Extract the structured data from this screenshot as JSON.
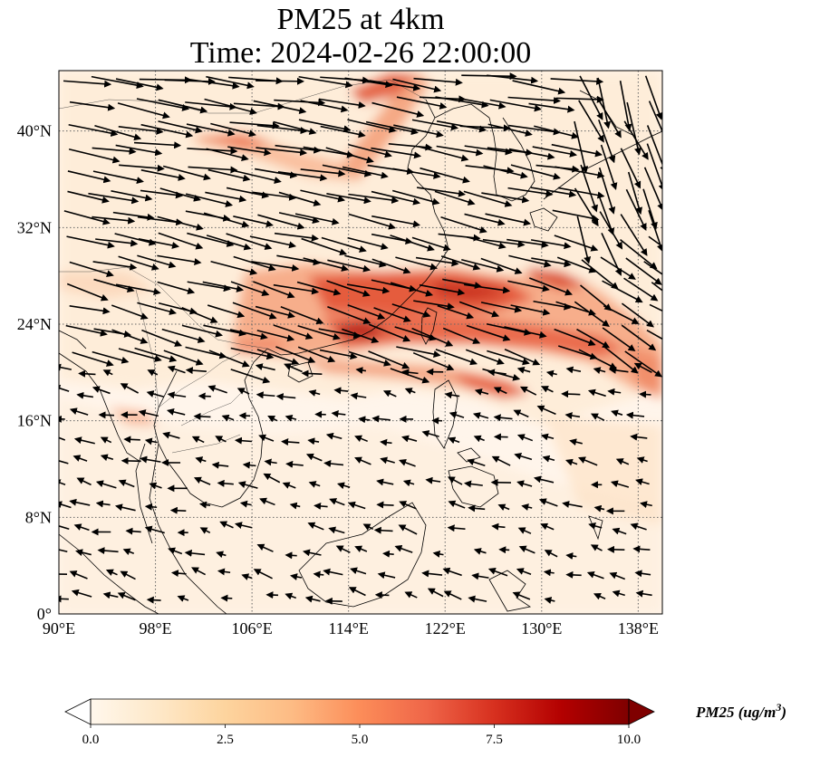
{
  "title": {
    "line1": "PM25 at 4km",
    "line2": "Time: 2024-02-26 22:00:00"
  },
  "map": {
    "lon_range": [
      90,
      140
    ],
    "lat_range": [
      0,
      45
    ],
    "lon_ticks": [
      {
        "value": 90,
        "label": "90°E"
      },
      {
        "value": 98,
        "label": "98°E"
      },
      {
        "value": 106,
        "label": "106°E"
      },
      {
        "value": 114,
        "label": "114°E"
      },
      {
        "value": 122,
        "label": "122°E"
      },
      {
        "value": 130,
        "label": "130°E"
      },
      {
        "value": 138,
        "label": "138°E"
      }
    ],
    "lat_ticks": [
      {
        "value": 0,
        "label": "0°"
      },
      {
        "value": 8,
        "label": "8°N"
      },
      {
        "value": 16,
        "label": "16°N"
      },
      {
        "value": 24,
        "label": "24°N"
      },
      {
        "value": 32,
        "label": "32°N"
      },
      {
        "value": 40,
        "label": "40°N"
      }
    ],
    "gridlines": "dotted",
    "background_color": "#fff5eb",
    "features": [
      "coastlines",
      "borders",
      "wind-vectors",
      "pm25-field"
    ]
  },
  "colorbar": {
    "title": "PM25 (ug/m",
    "title_sup": "3",
    "title_close": ")",
    "range": [
      0,
      10
    ],
    "ticks": [
      {
        "value": 0,
        "label": "0.0"
      },
      {
        "value": 2.5,
        "label": "2.5"
      },
      {
        "value": 5,
        "label": "5.0"
      },
      {
        "value": 7.5,
        "label": "7.5"
      },
      {
        "value": 10,
        "label": "10.0"
      }
    ],
    "colormap": "OrRd",
    "colors": [
      "#fff7ec",
      "#fee8c8",
      "#fdd49e",
      "#fdbb84",
      "#fc8d59",
      "#ef6548",
      "#d7301f",
      "#b30000",
      "#7f0000"
    ]
  }
}
